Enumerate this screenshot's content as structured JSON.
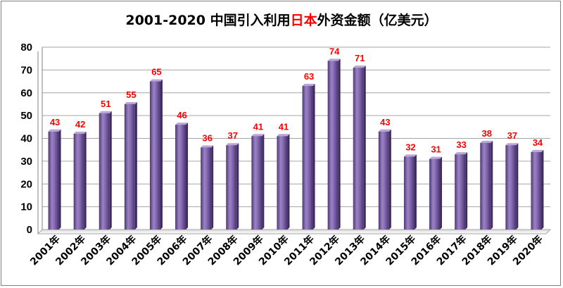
{
  "chart_data": {
    "type": "bar",
    "title_parts": [
      "2001-2020 中国引入利用",
      "日本",
      "外资金额（亿美元）"
    ],
    "title": "2001-2020 中国引入利用日本外资金额（亿美元）",
    "categories": [
      "2001年",
      "2002年",
      "2003年",
      "2004年",
      "2005年",
      "2006年",
      "2007年",
      "2008年",
      "2009年",
      "2010年",
      "2011年",
      "2012年",
      "2013年",
      "2014年",
      "2015年",
      "2016年",
      "2017年",
      "2018年",
      "2019年",
      "2020年"
    ],
    "values": [
      43,
      42,
      51,
      55,
      65,
      46,
      36,
      37,
      41,
      41,
      63,
      74,
      71,
      43,
      32,
      31,
      33,
      38,
      37,
      34
    ],
    "data_labels": [
      "43",
      "42",
      "51",
      "55",
      "65",
      "46",
      "36",
      "37",
      "41",
      "41",
      "63",
      "74",
      "71",
      "43",
      "32",
      "31",
      "33",
      "38",
      "37",
      "34"
    ],
    "yticks": [
      "0",
      "10",
      "20",
      "30",
      "40",
      "50",
      "60",
      "70",
      "80"
    ],
    "ylim": [
      0,
      80
    ],
    "grid": true,
    "legend": "none",
    "bar_color": "#8064a2",
    "label_color": "#ff0000",
    "title_highlight_color": "#ff0000"
  }
}
